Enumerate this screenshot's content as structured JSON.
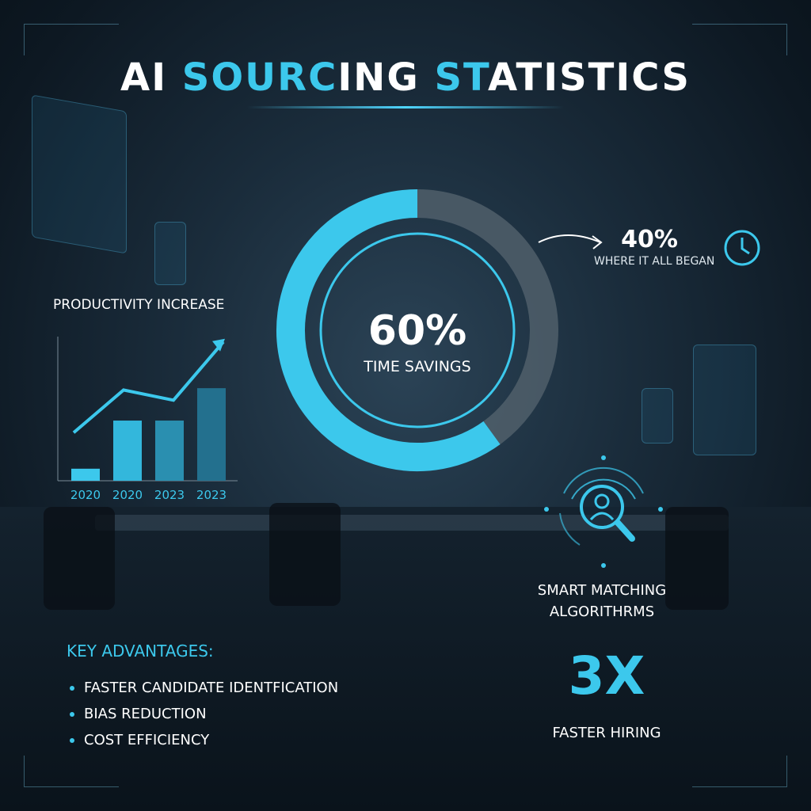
{
  "title": {
    "parts": [
      {
        "text": "AI ",
        "accent": false
      },
      {
        "text": "SOURC",
        "accent": true
      },
      {
        "text": "ING ",
        "accent": false
      },
      {
        "text": "ST",
        "accent": true
      },
      {
        "text": "ATISTICS",
        "accent": false
      }
    ]
  },
  "colors": {
    "accent": "#3cc8ec",
    "background": "#0d1822",
    "text": "#ffffff"
  },
  "stat_40": {
    "value": "40%",
    "label": "WHERE IT ALL BEGAN",
    "icon": "clock-icon"
  },
  "smart": {
    "line1": "SMART MATCHING",
    "line2": "ALGORITHRMS",
    "icon": "user-search-icon"
  },
  "faster": {
    "value": "3X",
    "label": "FASTER HIRING"
  },
  "advantages": {
    "heading": "KEY ADVANTAGES:",
    "items": [
      "FASTER CANDIDATE IDENTFICATION",
      "BIAS REDUCTION",
      "COST EFFICIENCY"
    ]
  },
  "chart_data": [
    {
      "type": "bar",
      "title": "PRODUCTIVITY INCREASE",
      "categories": [
        "2020",
        "2020",
        "2023",
        "2023"
      ],
      "values": [
        13,
        65,
        65,
        100
      ],
      "trend_line": [
        52,
        98,
        87,
        150
      ],
      "ylim": [
        0,
        160
      ],
      "grid": false
    },
    {
      "type": "pie",
      "donut": true,
      "center_value": "60%",
      "center_label": "TIME SAVINGS",
      "slices": [
        {
          "value": 60,
          "color": "#3cc8ec"
        },
        {
          "value": 40,
          "color": "#5a6872"
        }
      ]
    }
  ]
}
